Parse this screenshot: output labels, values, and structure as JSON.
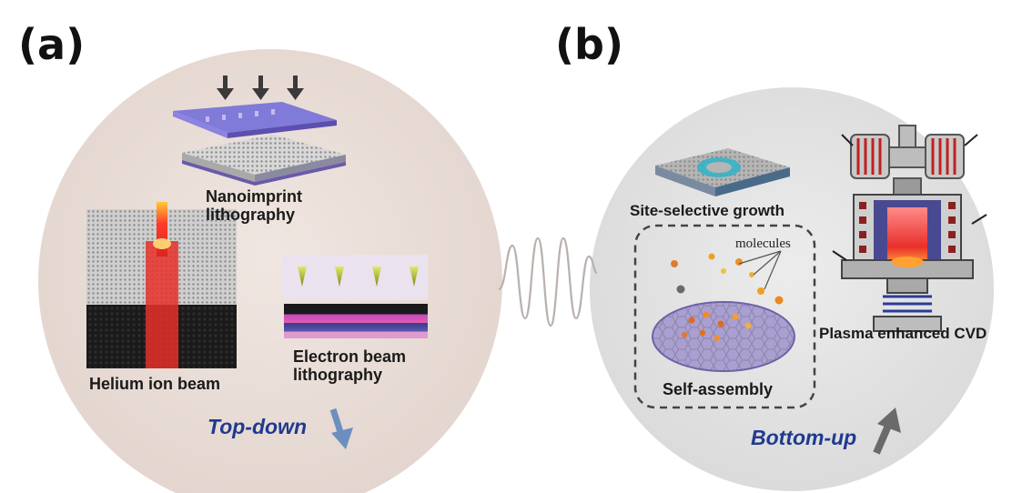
{
  "panels": {
    "a": {
      "letter": "(a)",
      "direction": "Top-down",
      "labels": {
        "nanoimprint": [
          "Nanoimprint",
          "lithography"
        ],
        "helium": "Helium ion beam",
        "electron": [
          "Electron beam",
          "lithography"
        ]
      }
    },
    "b": {
      "letter": "(b)",
      "direction": "Bottom-up",
      "labels": {
        "site_selective": "Site-selective growth",
        "molecules": "molecules",
        "plasma": "Plasma enhanced CVD",
        "self_assembly": "Self-assembly"
      }
    }
  },
  "colors": {
    "panel_a_bg": "#e8dcd6",
    "panel_b_bg": "#e3e3e3",
    "direction_text": "#1f3a8f",
    "topdown_arrow": "#6d8fbf",
    "bottomup_arrow": "#6a6a6a",
    "beam_red": "#e8302a"
  }
}
